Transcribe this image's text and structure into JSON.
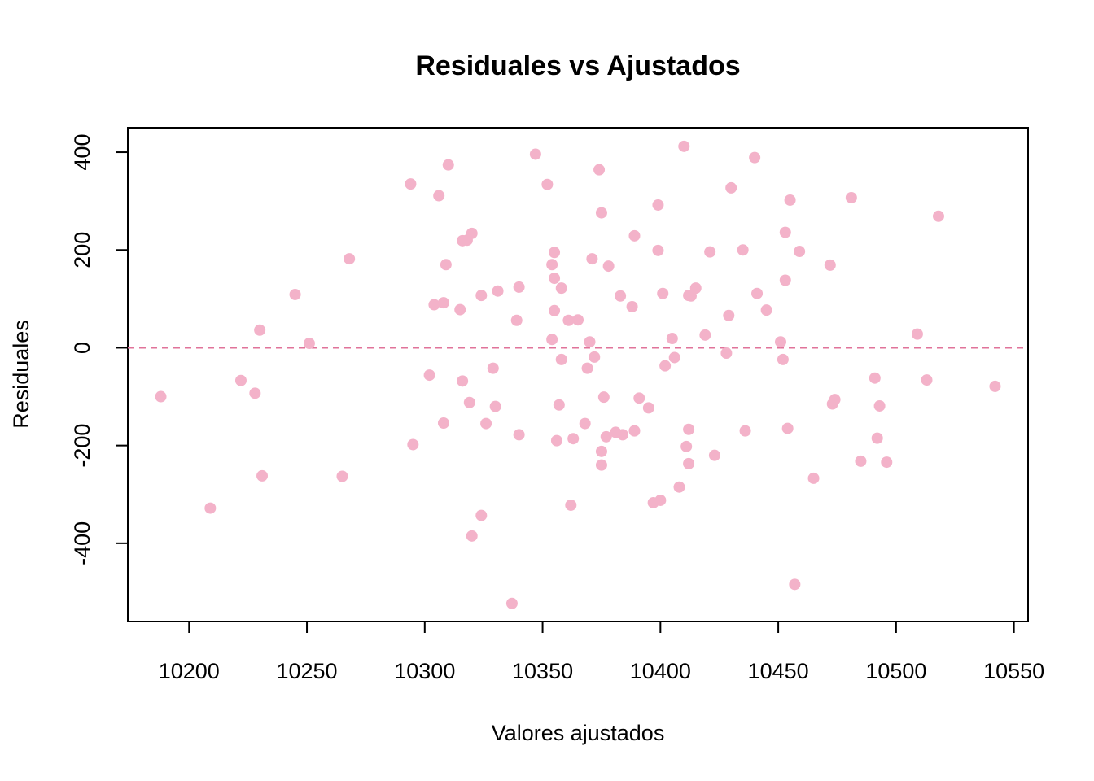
{
  "chart_data": {
    "type": "scatter",
    "title": "Residuales vs Ajustados",
    "xlabel": "Valores ajustados",
    "ylabel": "Residuales",
    "xlim": [
      10174,
      10556
    ],
    "ylim": [
      -560,
      450
    ],
    "xticks": [
      10200,
      10250,
      10300,
      10350,
      10400,
      10450,
      10500,
      10550
    ],
    "yticks": [
      -400,
      -200,
      0,
      200,
      400
    ],
    "reference_line": {
      "y": 0,
      "style": "dashed",
      "color": "#e0739a"
    },
    "point_color": "#f3b2c9",
    "grid": false,
    "points": [
      {
        "x": 10188,
        "y": -100
      },
      {
        "x": 10209,
        "y": -328
      },
      {
        "x": 10222,
        "y": -67
      },
      {
        "x": 10228,
        "y": -93
      },
      {
        "x": 10230,
        "y": 36
      },
      {
        "x": 10231,
        "y": -262
      },
      {
        "x": 10245,
        "y": 109
      },
      {
        "x": 10251,
        "y": 9
      },
      {
        "x": 10265,
        "y": -263
      },
      {
        "x": 10268,
        "y": 182
      },
      {
        "x": 10294,
        "y": 335
      },
      {
        "x": 10295,
        "y": -198
      },
      {
        "x": 10302,
        "y": -56
      },
      {
        "x": 10304,
        "y": 88
      },
      {
        "x": 10306,
        "y": 311
      },
      {
        "x": 10308,
        "y": 92
      },
      {
        "x": 10308,
        "y": -154
      },
      {
        "x": 10309,
        "y": 170
      },
      {
        "x": 10310,
        "y": 374
      },
      {
        "x": 10315,
        "y": 78
      },
      {
        "x": 10316,
        "y": -68
      },
      {
        "x": 10316,
        "y": 219
      },
      {
        "x": 10318,
        "y": 220
      },
      {
        "x": 10320,
        "y": 234
      },
      {
        "x": 10319,
        "y": -112
      },
      {
        "x": 10320,
        "y": -385
      },
      {
        "x": 10324,
        "y": -343
      },
      {
        "x": 10324,
        "y": 107
      },
      {
        "x": 10326,
        "y": -155
      },
      {
        "x": 10329,
        "y": -42
      },
      {
        "x": 10330,
        "y": -120
      },
      {
        "x": 10331,
        "y": 116
      },
      {
        "x": 10337,
        "y": -523
      },
      {
        "x": 10339,
        "y": 56
      },
      {
        "x": 10340,
        "y": 124
      },
      {
        "x": 10340,
        "y": -178
      },
      {
        "x": 10347,
        "y": 396
      },
      {
        "x": 10352,
        "y": 334
      },
      {
        "x": 10354,
        "y": 17
      },
      {
        "x": 10354,
        "y": 170
      },
      {
        "x": 10355,
        "y": 142
      },
      {
        "x": 10355,
        "y": 76
      },
      {
        "x": 10355,
        "y": 195
      },
      {
        "x": 10356,
        "y": -190
      },
      {
        "x": 10357,
        "y": -117
      },
      {
        "x": 10358,
        "y": -24
      },
      {
        "x": 10358,
        "y": 122
      },
      {
        "x": 10361,
        "y": 56
      },
      {
        "x": 10362,
        "y": -322
      },
      {
        "x": 10363,
        "y": -186
      },
      {
        "x": 10365,
        "y": 57
      },
      {
        "x": 10368,
        "y": -155
      },
      {
        "x": 10369,
        "y": -42
      },
      {
        "x": 10370,
        "y": 12
      },
      {
        "x": 10371,
        "y": 182
      },
      {
        "x": 10372,
        "y": -19
      },
      {
        "x": 10374,
        "y": 364
      },
      {
        "x": 10375,
        "y": -212
      },
      {
        "x": 10375,
        "y": -240
      },
      {
        "x": 10375,
        "y": 276
      },
      {
        "x": 10376,
        "y": -101
      },
      {
        "x": 10377,
        "y": -182
      },
      {
        "x": 10378,
        "y": 167
      },
      {
        "x": 10381,
        "y": -173
      },
      {
        "x": 10383,
        "y": 106
      },
      {
        "x": 10384,
        "y": -178
      },
      {
        "x": 10388,
        "y": 84
      },
      {
        "x": 10389,
        "y": -170
      },
      {
        "x": 10389,
        "y": 229
      },
      {
        "x": 10391,
        "y": -103
      },
      {
        "x": 10395,
        "y": -123
      },
      {
        "x": 10397,
        "y": -317
      },
      {
        "x": 10399,
        "y": 199
      },
      {
        "x": 10399,
        "y": 292
      },
      {
        "x": 10400,
        "y": -312
      },
      {
        "x": 10401,
        "y": 111
      },
      {
        "x": 10402,
        "y": -37
      },
      {
        "x": 10405,
        "y": 19
      },
      {
        "x": 10406,
        "y": -20
      },
      {
        "x": 10408,
        "y": -285
      },
      {
        "x": 10410,
        "y": 412
      },
      {
        "x": 10411,
        "y": -202
      },
      {
        "x": 10412,
        "y": 107
      },
      {
        "x": 10412,
        "y": -237
      },
      {
        "x": 10412,
        "y": -167
      },
      {
        "x": 10413,
        "y": 106
      },
      {
        "x": 10415,
        "y": 122
      },
      {
        "x": 10419,
        "y": 26
      },
      {
        "x": 10421,
        "y": 196
      },
      {
        "x": 10423,
        "y": -220
      },
      {
        "x": 10428,
        "y": -11
      },
      {
        "x": 10429,
        "y": 66
      },
      {
        "x": 10430,
        "y": 327
      },
      {
        "x": 10435,
        "y": 200
      },
      {
        "x": 10436,
        "y": -170
      },
      {
        "x": 10440,
        "y": 389
      },
      {
        "x": 10441,
        "y": 111
      },
      {
        "x": 10445,
        "y": 77
      },
      {
        "x": 10451,
        "y": 12
      },
      {
        "x": 10452,
        "y": -24
      },
      {
        "x": 10453,
        "y": 236
      },
      {
        "x": 10453,
        "y": 138
      },
      {
        "x": 10454,
        "y": -165
      },
      {
        "x": 10455,
        "y": 302
      },
      {
        "x": 10457,
        "y": -484
      },
      {
        "x": 10459,
        "y": 197
      },
      {
        "x": 10465,
        "y": -267
      },
      {
        "x": 10472,
        "y": 169
      },
      {
        "x": 10473,
        "y": -115
      },
      {
        "x": 10474,
        "y": -106
      },
      {
        "x": 10481,
        "y": 307
      },
      {
        "x": 10485,
        "y": -232
      },
      {
        "x": 10491,
        "y": -62
      },
      {
        "x": 10492,
        "y": -185
      },
      {
        "x": 10493,
        "y": -119
      },
      {
        "x": 10496,
        "y": -234
      },
      {
        "x": 10509,
        "y": 28
      },
      {
        "x": 10513,
        "y": -66
      },
      {
        "x": 10518,
        "y": 269
      },
      {
        "x": 10542,
        "y": -79
      }
    ]
  }
}
